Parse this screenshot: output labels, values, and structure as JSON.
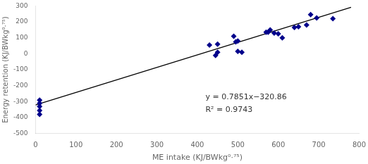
{
  "chart_data": {
    "type": "scatter",
    "x_label": "ME intake (KJ/BWkg⁰·⁷⁵)",
    "y_label": "Energy retention (KJ/BWkg⁰·⁷⁵)",
    "series": [
      {
        "type": "scatter",
        "color": "#00008B",
        "marker": "diamond",
        "x": [
          10,
          10,
          10,
          10,
          10,
          430,
          445,
          450,
          450,
          490,
          495,
          500,
          500,
          510,
          570,
          575,
          580,
          590,
          600,
          610,
          640,
          650,
          670,
          680,
          695,
          735
        ],
        "values": [
          -290,
          -310,
          -330,
          -355,
          -380,
          55,
          -10,
          60,
          10,
          110,
          75,
          80,
          15,
          10,
          135,
          135,
          150,
          130,
          125,
          100,
          165,
          170,
          180,
          245,
          225,
          220
        ]
      },
      {
        "type": "line",
        "color": "#000000",
        "line_style": "solid",
        "x": [
          0,
          780
        ],
        "values": [
          -320.86,
          291.518
        ]
      }
    ],
    "annotations": [
      {
        "text": "y = 0.7851x−320.86",
        "x": 420,
        "y": -270
      },
      {
        "text": "R² = 0.9743",
        "x": 420,
        "y": -350
      }
    ],
    "xlim": [
      0,
      800
    ],
    "ylim": [
      -500,
      300
    ],
    "xticks": [
      0,
      100,
      200,
      300,
      400,
      500,
      600,
      700,
      800
    ],
    "yticks": [
      -500,
      -400,
      -300,
      -200,
      -100,
      0,
      100,
      200,
      300
    ],
    "grid": false
  }
}
